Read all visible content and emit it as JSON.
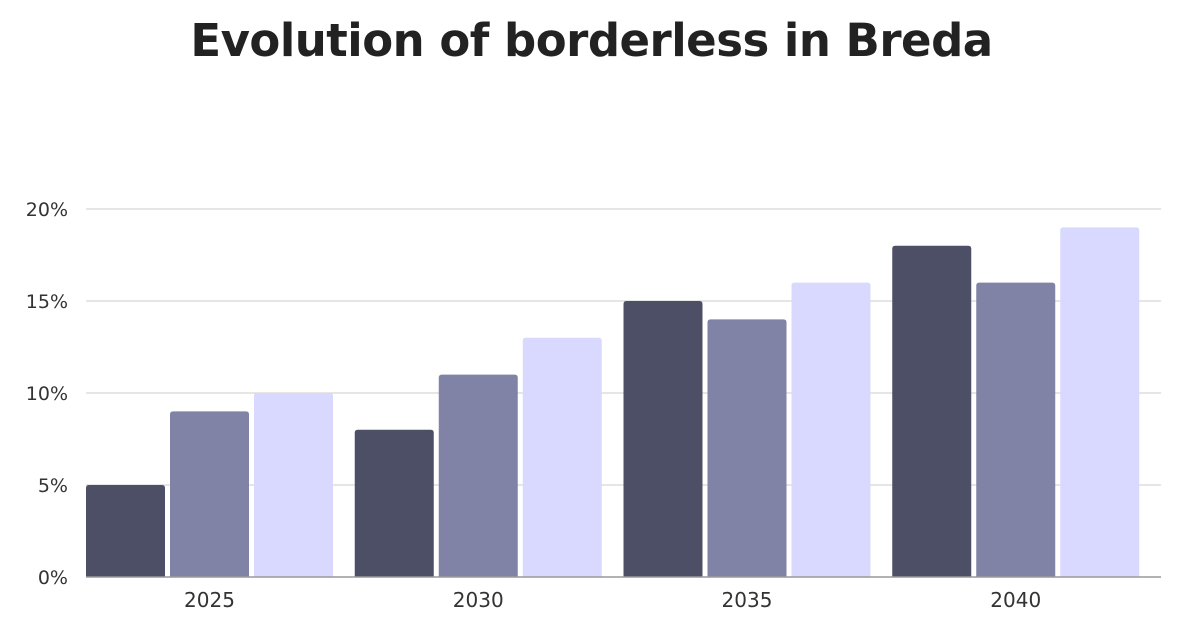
{
  "chart_data": {
    "type": "bar",
    "title": "Evolution of borderless in Breda",
    "categories": [
      "2025",
      "2030",
      "2035",
      "2040"
    ],
    "series": [
      {
        "values": [
          5,
          8,
          15,
          18
        ],
        "color": "#4d4f66"
      },
      {
        "values": [
          9,
          11,
          14,
          16
        ],
        "color": "#8082a6"
      },
      {
        "values": [
          10,
          13,
          16,
          19
        ],
        "color": "#d9d9ff"
      }
    ],
    "ylim": [
      0,
      20
    ],
    "yticks": [
      0,
      5,
      10,
      15,
      20
    ],
    "ytick_labels": [
      "0%",
      "5%",
      "10%",
      "15%",
      "20%"
    ],
    "grid": true,
    "gridline_color": "#cccccc",
    "axis_color": "#999999"
  }
}
